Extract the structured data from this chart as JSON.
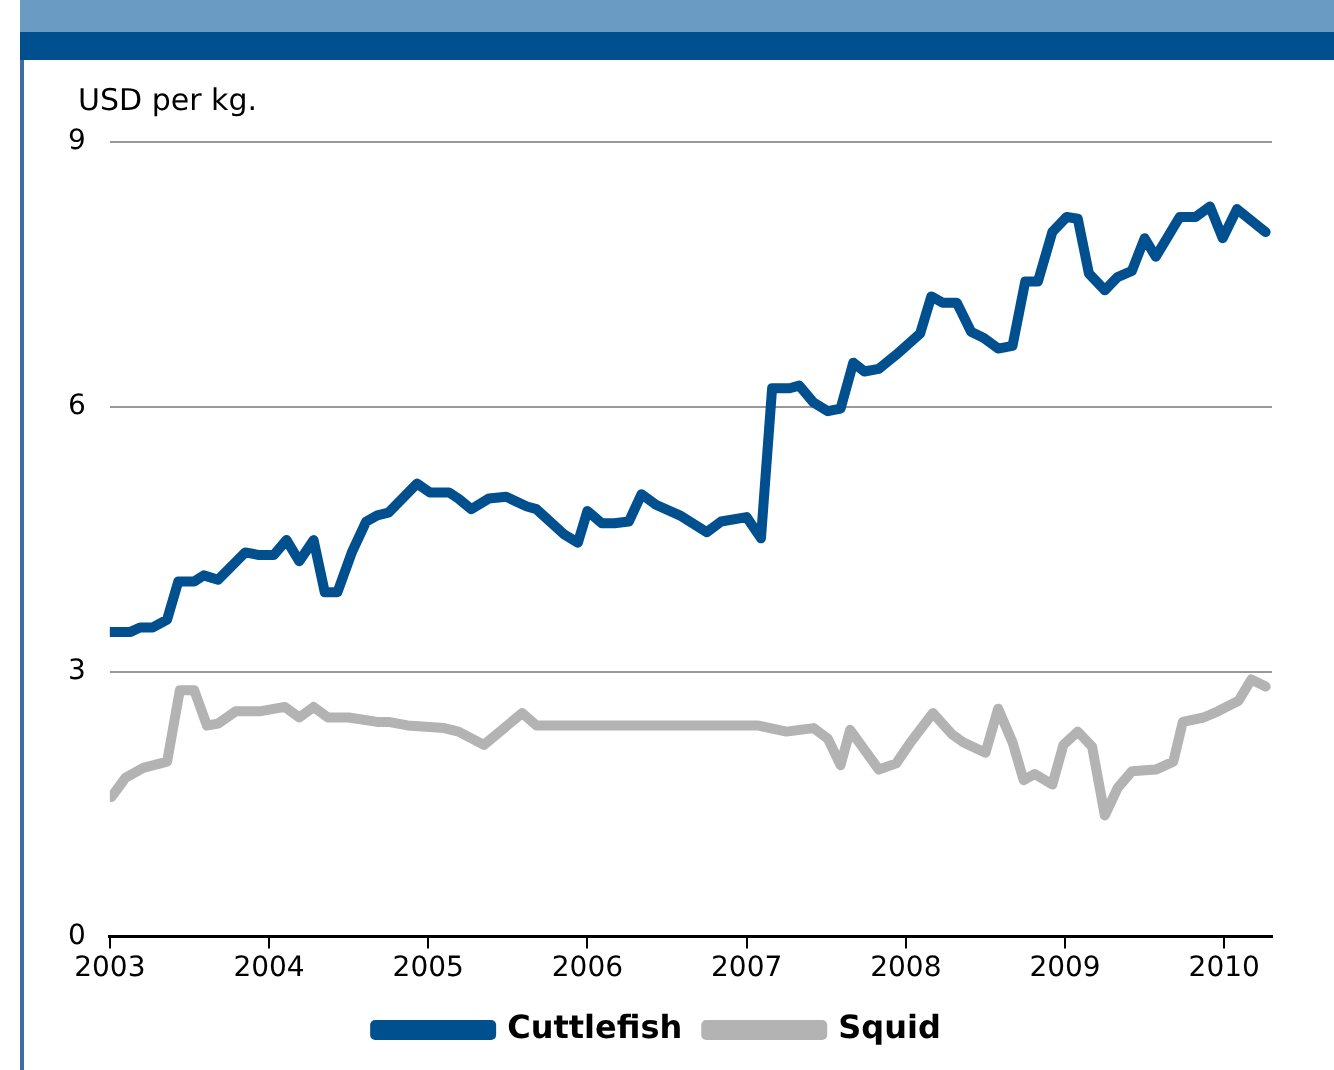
{
  "chart_data": {
    "type": "line",
    "ylabel": "USD per kg.",
    "xlim": [
      2003,
      2010.3
    ],
    "xticks": [
      2003,
      2004,
      2005,
      2006,
      2007,
      2008,
      2009,
      2010
    ],
    "ylim": [
      0,
      9
    ],
    "yticks": [
      0,
      3,
      6,
      9
    ],
    "grid": "y",
    "legend": "bottom",
    "marker": "none",
    "series": [
      {
        "name": "Cuttlefish",
        "color": "#00508f",
        "x": [
          2003.0,
          2003.13,
          2003.19,
          2003.27,
          2003.36,
          2003.43,
          2003.53,
          2003.59,
          2003.68,
          2003.85,
          2003.94,
          2004.03,
          2004.11,
          2004.19,
          2004.28,
          2004.35,
          2004.43,
          2004.52,
          2004.61,
          2004.68,
          2004.75,
          2004.93,
          2005.01,
          2005.13,
          2005.19,
          2005.27,
          2005.38,
          2005.49,
          2005.62,
          2005.68,
          2005.85,
          2005.94,
          2006.0,
          2006.09,
          2006.17,
          2006.26,
          2006.34,
          2006.43,
          2006.58,
          2006.75,
          2006.84,
          2007.0,
          2007.09,
          2007.16,
          2007.27,
          2007.33,
          2007.42,
          2007.51,
          2007.59,
          2007.67,
          2007.74,
          2007.83,
          2007.94,
          2008.09,
          2008.16,
          2008.23,
          2008.32,
          2008.41,
          2008.49,
          2008.58,
          2008.67,
          2008.75,
          2008.83,
          2008.92,
          2009.01,
          2009.08,
          2009.15,
          2009.25,
          2009.33,
          2009.42,
          2009.5,
          2009.57,
          2009.72,
          2009.82,
          2009.91,
          2009.99,
          2010.08,
          2010.26
        ],
        "values": [
          3.45,
          3.45,
          3.5,
          3.5,
          3.59,
          4.02,
          4.02,
          4.09,
          4.04,
          4.35,
          4.32,
          4.32,
          4.49,
          4.25,
          4.49,
          3.9,
          3.9,
          4.35,
          4.7,
          4.77,
          4.8,
          5.13,
          5.03,
          5.03,
          4.96,
          4.84,
          4.96,
          4.98,
          4.87,
          4.84,
          4.56,
          4.46,
          4.82,
          4.68,
          4.68,
          4.7,
          5.01,
          4.89,
          4.77,
          4.58,
          4.7,
          4.75,
          4.51,
          6.21,
          6.21,
          6.24,
          6.05,
          5.95,
          5.98,
          6.5,
          6.4,
          6.43,
          6.59,
          6.83,
          7.25,
          7.18,
          7.18,
          6.85,
          6.78,
          6.66,
          6.69,
          7.42,
          7.42,
          7.98,
          8.15,
          8.13,
          7.51,
          7.32,
          7.47,
          7.54,
          7.91,
          7.7,
          8.15,
          8.15,
          8.27,
          7.91,
          8.24,
          7.98
        ]
      },
      {
        "name": "Squid",
        "color": "#b3b3b3",
        "x": [
          2003.01,
          2003.1,
          2003.21,
          2003.36,
          2003.44,
          2003.53,
          2003.61,
          2003.68,
          2003.79,
          2003.94,
          2004.1,
          2004.19,
          2004.28,
          2004.37,
          2004.5,
          2004.68,
          2004.75,
          2004.87,
          2005.1,
          2005.19,
          2005.35,
          2005.59,
          2005.68,
          2007.07,
          2007.25,
          2007.42,
          2007.51,
          2007.59,
          2007.65,
          2007.83,
          2007.94,
          2008.03,
          2008.17,
          2008.29,
          2008.36,
          2008.5,
          2008.58,
          2008.67,
          2008.74,
          2008.81,
          2008.92,
          2008.99,
          2009.08,
          2009.17,
          2009.25,
          2009.33,
          2009.42,
          2009.57,
          2009.68,
          2009.74,
          2009.87,
          2009.96,
          2010.09,
          2010.17,
          2010.26
        ],
        "values": [
          1.58,
          1.8,
          1.91,
          1.98,
          2.79,
          2.79,
          2.39,
          2.41,
          2.55,
          2.55,
          2.6,
          2.48,
          2.6,
          2.48,
          2.48,
          2.43,
          2.43,
          2.39,
          2.36,
          2.32,
          2.17,
          2.53,
          2.39,
          2.39,
          2.32,
          2.36,
          2.24,
          1.94,
          2.34,
          1.89,
          1.96,
          2.2,
          2.53,
          2.29,
          2.2,
          2.08,
          2.58,
          2.2,
          1.77,
          1.84,
          1.72,
          2.17,
          2.32,
          2.15,
          1.37,
          1.68,
          1.87,
          1.89,
          1.98,
          2.43,
          2.48,
          2.55,
          2.67,
          2.91,
          2.83
        ]
      }
    ]
  }
}
